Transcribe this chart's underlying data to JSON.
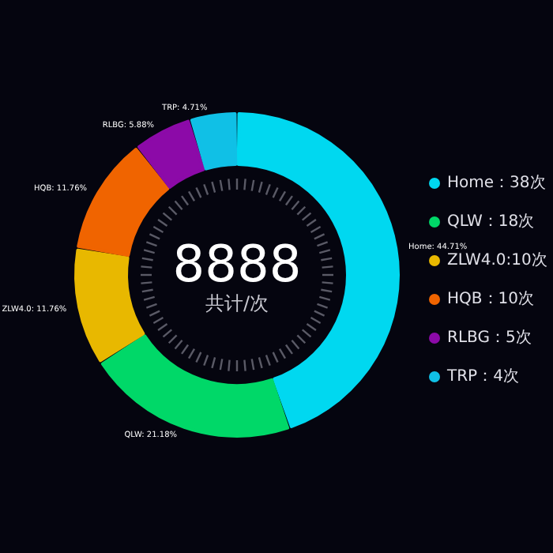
{
  "chart_data": {
    "type": "donut",
    "title": "8888",
    "subtitle": "共计/次",
    "categories": [
      "Home：38次",
      "QLW：18次",
      "ZLW4.0:10次",
      "HQB：10次",
      "RLBG：5次",
      "TRP：4次"
    ],
    "values": [
      44.71,
      21.18,
      11.76,
      11.76,
      5.88,
      4.71
    ],
    "value_labels": [
      "Home: 44.71%",
      "QLW: 21.18%",
      "ZLW4.0: 11.76%",
      "HQB: 11.76%",
      "RLBG: 5.88%",
      "TRP: 4.71%"
    ],
    "colors": [
      "#00d8f0",
      "#00d868",
      "#e8b800",
      "#f06400",
      "#8c0aa8",
      "#10c0e6"
    ],
    "legend": "right"
  }
}
